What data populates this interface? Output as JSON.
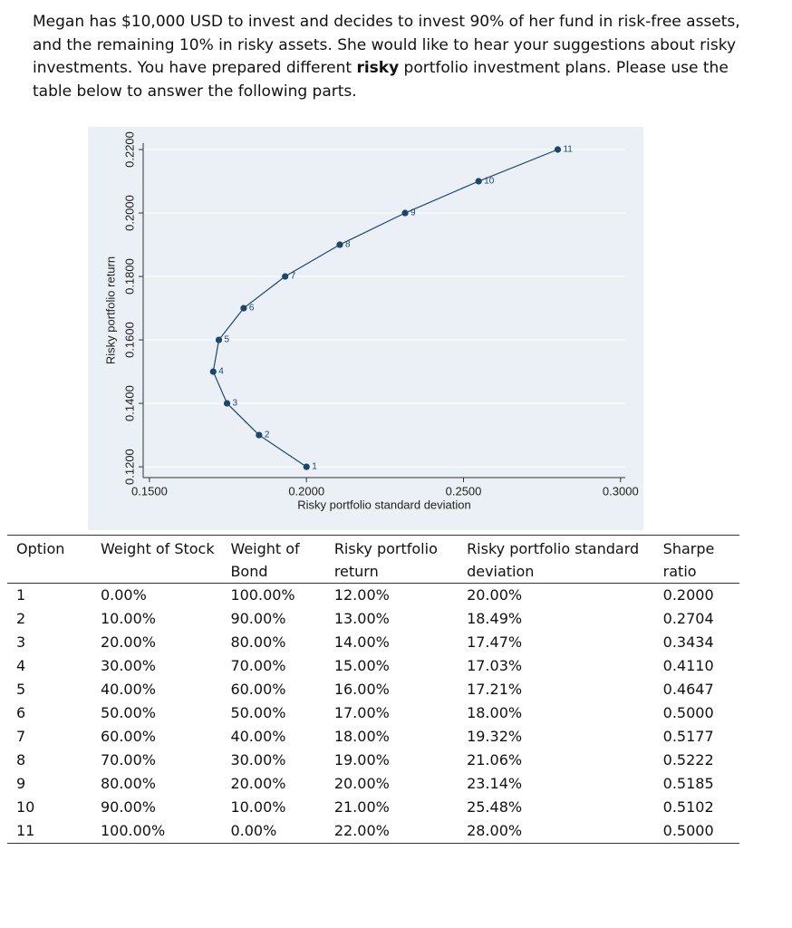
{
  "paragraph": {
    "before": "Megan has $10,000 USD to invest and decides to invest 90% of her fund in risk-free assets, and the remaining 10% in risky assets. She would like to hear your suggestions about risky investments. You have prepared different ",
    "bold": "risky",
    "after": " portfolio investment plans. Please use the table below to answer the following parts."
  },
  "chart_data": {
    "type": "line",
    "xlabel": "Risky portfolio standard deviation",
    "ylabel": "Risky portfolio return",
    "x": [
      0.2,
      0.1849,
      0.1747,
      0.1703,
      0.1721,
      0.18,
      0.1932,
      0.2106,
      0.2314,
      0.2548,
      0.28
    ],
    "values": [
      0.12,
      0.13,
      0.14,
      0.15,
      0.16,
      0.17,
      0.18,
      0.19,
      0.2,
      0.21,
      0.22
    ],
    "point_labels": [
      "1",
      "2",
      "3",
      "4",
      "5",
      "6",
      "7",
      "8",
      "9",
      "10",
      "11"
    ],
    "color": "#1a476f",
    "grid": true,
    "xlim": [
      0.148,
      0.3015
    ],
    "ylim": [
      0.1166,
      0.222
    ],
    "xticks": [
      {
        "value": 0.15,
        "label": "0.1500"
      },
      {
        "value": 0.2,
        "label": "0.2000"
      },
      {
        "value": 0.25,
        "label": "0.2500"
      },
      {
        "value": 0.3,
        "label": "0.3000"
      }
    ],
    "yticks": [
      {
        "value": 0.12,
        "label": "0.1200"
      },
      {
        "value": 0.14,
        "label": "0.1400"
      },
      {
        "value": 0.16,
        "label": "0.1600"
      },
      {
        "value": 0.18,
        "label": "0.1800"
      },
      {
        "value": 0.2,
        "label": "0.2000"
      },
      {
        "value": 0.22,
        "label": "0.2200"
      }
    ]
  },
  "table": {
    "header": [
      "Option",
      "Weight of Stock",
      "Weight of Bond",
      "Risky portfolio return",
      "Risky portfolio standard deviation",
      "Sharpe ratio"
    ],
    "rows": [
      [
        "1",
        "0.00%",
        "100.00%",
        "12.00%",
        "20.00%",
        "0.2000"
      ],
      [
        "2",
        "10.00%",
        "90.00%",
        "13.00%",
        "18.49%",
        "0.2704"
      ],
      [
        "3",
        "20.00%",
        "80.00%",
        "14.00%",
        "17.47%",
        "0.3434"
      ],
      [
        "4",
        "30.00%",
        "70.00%",
        "15.00%",
        "17.03%",
        "0.4110"
      ],
      [
        "5",
        "40.00%",
        "60.00%",
        "16.00%",
        "17.21%",
        "0.4647"
      ],
      [
        "6",
        "50.00%",
        "50.00%",
        "17.00%",
        "18.00%",
        "0.5000"
      ],
      [
        "7",
        "60.00%",
        "40.00%",
        "18.00%",
        "19.32%",
        "0.5177"
      ],
      [
        "8",
        "70.00%",
        "30.00%",
        "19.00%",
        "21.06%",
        "0.5222"
      ],
      [
        "9",
        "80.00%",
        "20.00%",
        "20.00%",
        "23.14%",
        "0.5185"
      ],
      [
        "10",
        "90.00%",
        "10.00%",
        "21.00%",
        "25.48%",
        "0.5102"
      ],
      [
        "11",
        "100.00%",
        "0.00%",
        "22.00%",
        "28.00%",
        "0.5000"
      ]
    ]
  }
}
